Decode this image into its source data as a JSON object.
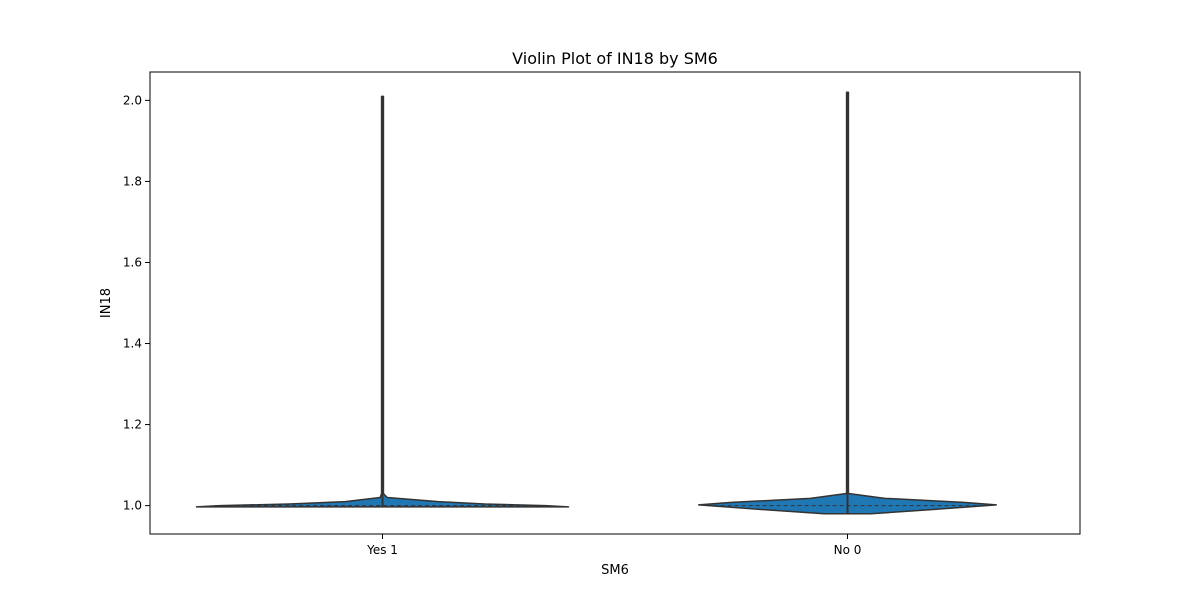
{
  "chart_data": {
    "type": "violin",
    "title": "Violin Plot of IN18 by SM6",
    "xlabel": "SM6",
    "ylabel": "IN18",
    "categories": [
      "Yes 1",
      "No 0"
    ],
    "ylim": [
      0.93,
      2.07
    ],
    "yticks": [
      "1.0",
      "1.2",
      "1.4",
      "1.6",
      "1.8",
      "2.0"
    ],
    "grid": false,
    "fill_color": "#1f77b4",
    "edge_color": "#333333",
    "violins": [
      {
        "category": "Yes 1",
        "min": 0.997,
        "max": 2.01,
        "median": 1.0,
        "q1": 1.0,
        "q3": 1.0,
        "density_profile": [
          {
            "y": 0.997,
            "left_width": 0.4,
            "right_width": 0.4
          },
          {
            "y": 1.0,
            "left_width": 0.35,
            "right_width": 0.35
          },
          {
            "y": 1.004,
            "left_width": 0.2,
            "right_width": 0.22
          },
          {
            "y": 1.01,
            "left_width": 0.08,
            "right_width": 0.12
          },
          {
            "y": 1.02,
            "left_width": 0.005,
            "right_width": 0.01
          },
          {
            "y": 1.03,
            "left_width": 0.002,
            "right_width": 0.002
          },
          {
            "y": 2.01,
            "left_width": 0.002,
            "right_width": 0.002
          }
        ]
      },
      {
        "category": "No 0",
        "min": 0.98,
        "max": 2.02,
        "median": 1.0,
        "q1": 1.0,
        "q3": 1.0,
        "density_profile": [
          {
            "y": 0.98,
            "left_width": 0.05,
            "right_width": 0.05
          },
          {
            "y": 0.99,
            "left_width": 0.18,
            "right_width": 0.18
          },
          {
            "y": 1.002,
            "left_width": 0.32,
            "right_width": 0.32
          },
          {
            "y": 1.008,
            "left_width": 0.25,
            "right_width": 0.25
          },
          {
            "y": 1.018,
            "left_width": 0.08,
            "right_width": 0.08
          },
          {
            "y": 1.03,
            "left_width": 0.002,
            "right_width": 0.002
          },
          {
            "y": 2.02,
            "left_width": 0.002,
            "right_width": 0.002
          }
        ]
      }
    ]
  }
}
